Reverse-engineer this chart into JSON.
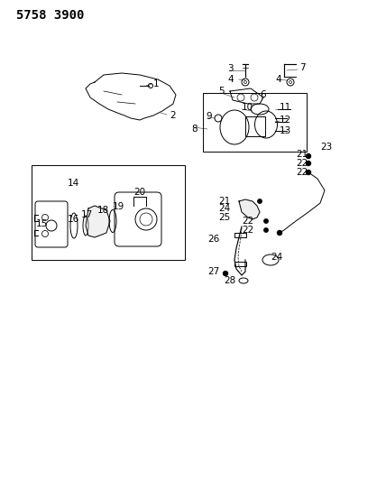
{
  "title": "5758 3900",
  "bg_color": "#ffffff",
  "line_color": "#000000",
  "title_fontsize": 10,
  "label_fontsize": 7.5,
  "fig_width": 4.28,
  "fig_height": 5.33,
  "dpi": 100
}
